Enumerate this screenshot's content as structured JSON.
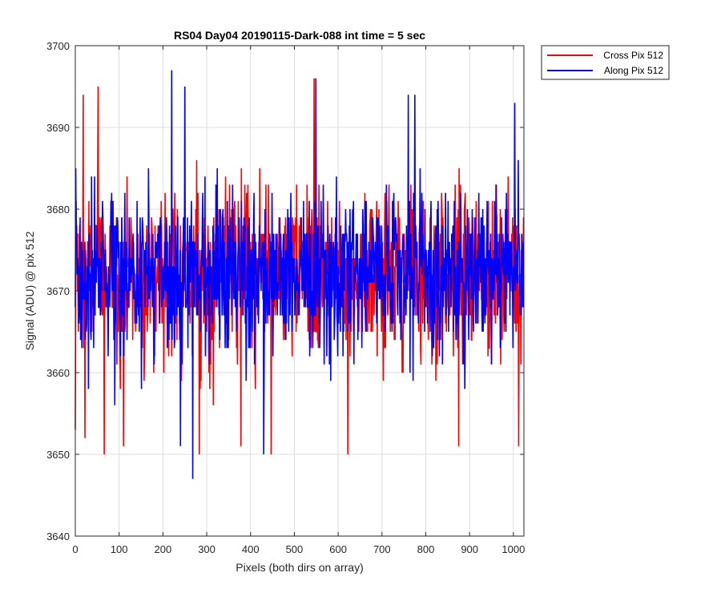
{
  "chart_data": {
    "type": "line",
    "title": "RS04 Day04 20190115-Dark-088 int time = 5 sec",
    "xlabel": "Pixels (both dirs on array)",
    "ylabel": "Signal (ADU) @ pix 512",
    "xlim": [
      0,
      1024
    ],
    "ylim": [
      3640,
      3700
    ],
    "xticks": [
      0,
      100,
      200,
      300,
      400,
      500,
      600,
      700,
      800,
      900,
      1000
    ],
    "yticks": [
      3640,
      3650,
      3660,
      3670,
      3680,
      3690,
      3700
    ],
    "grid": true,
    "legend_position": "outside-top-right",
    "noise_note": "per-pixel values are dense noise; approximated by an estimated mean around 3672 with spread ~5 ADU and notable extreme spikes",
    "series": [
      {
        "name": "Cross Pix 512",
        "color": "#ff0000",
        "mean": 3672,
        "std": 5,
        "num_points": 1024,
        "extremes": [
          {
            "x": 0,
            "y": 3653
          },
          {
            "x": 18,
            "y": 3694
          },
          {
            "x": 22,
            "y": 3652
          },
          {
            "x": 52,
            "y": 3695
          },
          {
            "x": 66,
            "y": 3650
          },
          {
            "x": 110,
            "y": 3651
          },
          {
            "x": 283,
            "y": 3650
          },
          {
            "x": 378,
            "y": 3651
          },
          {
            "x": 447,
            "y": 3650
          },
          {
            "x": 545,
            "y": 3696
          },
          {
            "x": 622,
            "y": 3650
          },
          {
            "x": 875,
            "y": 3651
          },
          {
            "x": 1012,
            "y": 3651
          }
        ]
      },
      {
        "name": "Along Pix 512",
        "color": "#0000ff",
        "mean": 3672,
        "std": 5,
        "num_points": 1024,
        "extremes": [
          {
            "x": 220,
            "y": 3697
          },
          {
            "x": 250,
            "y": 3695
          },
          {
            "x": 240,
            "y": 3651
          },
          {
            "x": 268,
            "y": 3647
          },
          {
            "x": 430,
            "y": 3650
          },
          {
            "x": 549,
            "y": 3696
          },
          {
            "x": 760,
            "y": 3694
          },
          {
            "x": 775,
            "y": 3694
          },
          {
            "x": 1003,
            "y": 3693
          }
        ]
      }
    ]
  }
}
